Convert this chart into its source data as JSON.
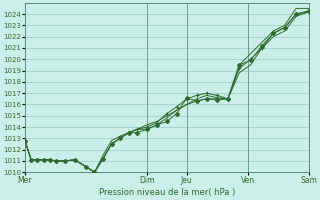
{
  "background_color": "#cceee8",
  "plot_bg_color": "#cceee8",
  "grid_color": "#99cccc",
  "line_color": "#2d6b2d",
  "xlabel": "Pression niveau de la mer( hPa )",
  "ylim": [
    1010,
    1025
  ],
  "yticks": [
    1010,
    1011,
    1012,
    1013,
    1014,
    1015,
    1016,
    1017,
    1018,
    1019,
    1020,
    1021,
    1022,
    1023,
    1024
  ],
  "xtick_labels": [
    "Mer",
    "Dim",
    "Jeu",
    "Ven",
    "Sam"
  ],
  "xtick_positions": [
    0.0,
    0.43,
    0.57,
    0.785,
    1.0
  ],
  "vline_positions": [
    0.0,
    0.43,
    0.57,
    0.785,
    1.0
  ],
  "series": [
    {
      "x": [
        0.0,
        0.022,
        0.044,
        0.066,
        0.088,
        0.11,
        0.14,
        0.175,
        0.215,
        0.245,
        0.275,
        0.305,
        0.335,
        0.365,
        0.395,
        0.43,
        0.465,
        0.5,
        0.535,
        0.57,
        0.605,
        0.64,
        0.678,
        0.715,
        0.755,
        0.795,
        0.835,
        0.875,
        0.915,
        0.955,
        1.0
      ],
      "y": [
        1012.8,
        1011.1,
        1011.1,
        1011.1,
        1011.1,
        1011.0,
        1011.0,
        1011.1,
        1010.5,
        1010.0,
        1011.2,
        1012.5,
        1013.0,
        1013.5,
        1013.5,
        1013.8,
        1014.2,
        1014.5,
        1015.2,
        1016.6,
        1016.3,
        1016.5,
        1016.4,
        1016.5,
        1019.5,
        1019.9,
        1021.2,
        1022.3,
        1022.8,
        1024.0,
        1024.3
      ],
      "marker": true,
      "marker_style": "D"
    },
    {
      "x": [
        0.0,
        0.022,
        0.044,
        0.066,
        0.088,
        0.11,
        0.14,
        0.175,
        0.215,
        0.245,
        0.275,
        0.305,
        0.335,
        0.365,
        0.395,
        0.43,
        0.465,
        0.5,
        0.535,
        0.57,
        0.605,
        0.64,
        0.678,
        0.715,
        0.755,
        0.795,
        0.835,
        0.875,
        0.915,
        0.955,
        1.0
      ],
      "y": [
        1012.8,
        1011.1,
        1011.1,
        1011.1,
        1011.1,
        1011.0,
        1011.0,
        1011.1,
        1010.5,
        1010.0,
        1011.5,
        1012.8,
        1013.2,
        1013.5,
        1013.8,
        1014.2,
        1014.5,
        1015.0,
        1015.5,
        1016.0,
        1016.5,
        1016.8,
        1016.6,
        1016.5,
        1019.5,
        1020.5,
        1021.5,
        1022.5,
        1023.0,
        1024.5,
        1024.5
      ],
      "marker": false
    },
    {
      "x": [
        0.0,
        0.022,
        0.044,
        0.066,
        0.088,
        0.11,
        0.14,
        0.175,
        0.215,
        0.245,
        0.275,
        0.305,
        0.335,
        0.365,
        0.395,
        0.43,
        0.465,
        0.5,
        0.535,
        0.57,
        0.605,
        0.64,
        0.678,
        0.715,
        0.755,
        0.795,
        0.835,
        0.875,
        0.915,
        0.955,
        1.0
      ],
      "y": [
        1012.8,
        1011.1,
        1011.1,
        1011.1,
        1011.1,
        1011.0,
        1011.0,
        1011.1,
        1010.5,
        1010.0,
        1011.2,
        1012.5,
        1013.0,
        1013.5,
        1013.8,
        1014.0,
        1014.4,
        1015.2,
        1015.8,
        1016.5,
        1016.8,
        1017.0,
        1016.8,
        1016.5,
        1019.2,
        1020.0,
        1021.0,
        1022.3,
        1022.8,
        1024.0,
        1024.2
      ],
      "marker": true,
      "marker_style": "+"
    },
    {
      "x": [
        0.0,
        0.022,
        0.044,
        0.066,
        0.088,
        0.11,
        0.14,
        0.175,
        0.215,
        0.245,
        0.275,
        0.305,
        0.335,
        0.365,
        0.395,
        0.43,
        0.465,
        0.5,
        0.535,
        0.57,
        0.605,
        0.64,
        0.678,
        0.715,
        0.755,
        0.795,
        0.835,
        0.875,
        0.915,
        0.955,
        1.0
      ],
      "y": [
        1012.8,
        1011.1,
        1011.1,
        1011.1,
        1011.1,
        1011.0,
        1011.0,
        1011.1,
        1010.5,
        1010.0,
        1011.2,
        1012.5,
        1013.0,
        1013.5,
        1013.8,
        1013.8,
        1014.2,
        1014.8,
        1015.5,
        1016.0,
        1016.3,
        1016.5,
        1016.5,
        1016.5,
        1018.8,
        1019.5,
        1021.0,
        1022.0,
        1022.5,
        1023.8,
        1024.2
      ],
      "marker": false
    }
  ]
}
